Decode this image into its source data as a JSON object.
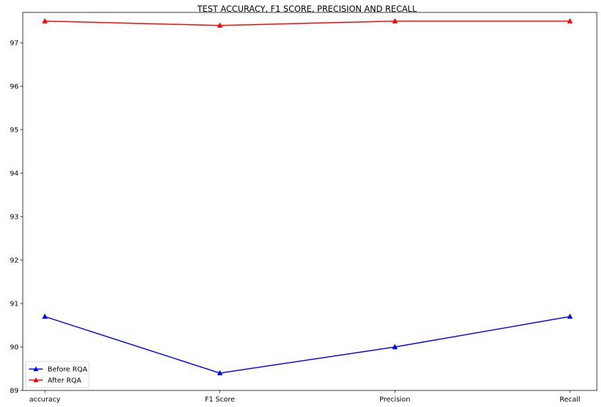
{
  "chart_data": {
    "type": "line",
    "title": "TEST ACCURACY, F1 SCORE, PRECISION AND RECALL",
    "xlabel": "",
    "ylabel": "",
    "categories": [
      "accuracy",
      "F1 Score",
      "Precision",
      "Recall"
    ],
    "ylim": [
      89,
      97.7
    ],
    "yticks": [
      89,
      90,
      91,
      92,
      93,
      94,
      95,
      96,
      97
    ],
    "grid": false,
    "legend_position": "lower-left",
    "marker": "triangle-up",
    "series": [
      {
        "name": "Before RQA",
        "color": "#0000ff",
        "values": [
          90.7,
          89.4,
          90.0,
          90.7
        ]
      },
      {
        "name": "After RQA",
        "color": "#ff0000",
        "values": [
          97.5,
          97.4,
          97.5,
          97.5
        ]
      }
    ]
  }
}
